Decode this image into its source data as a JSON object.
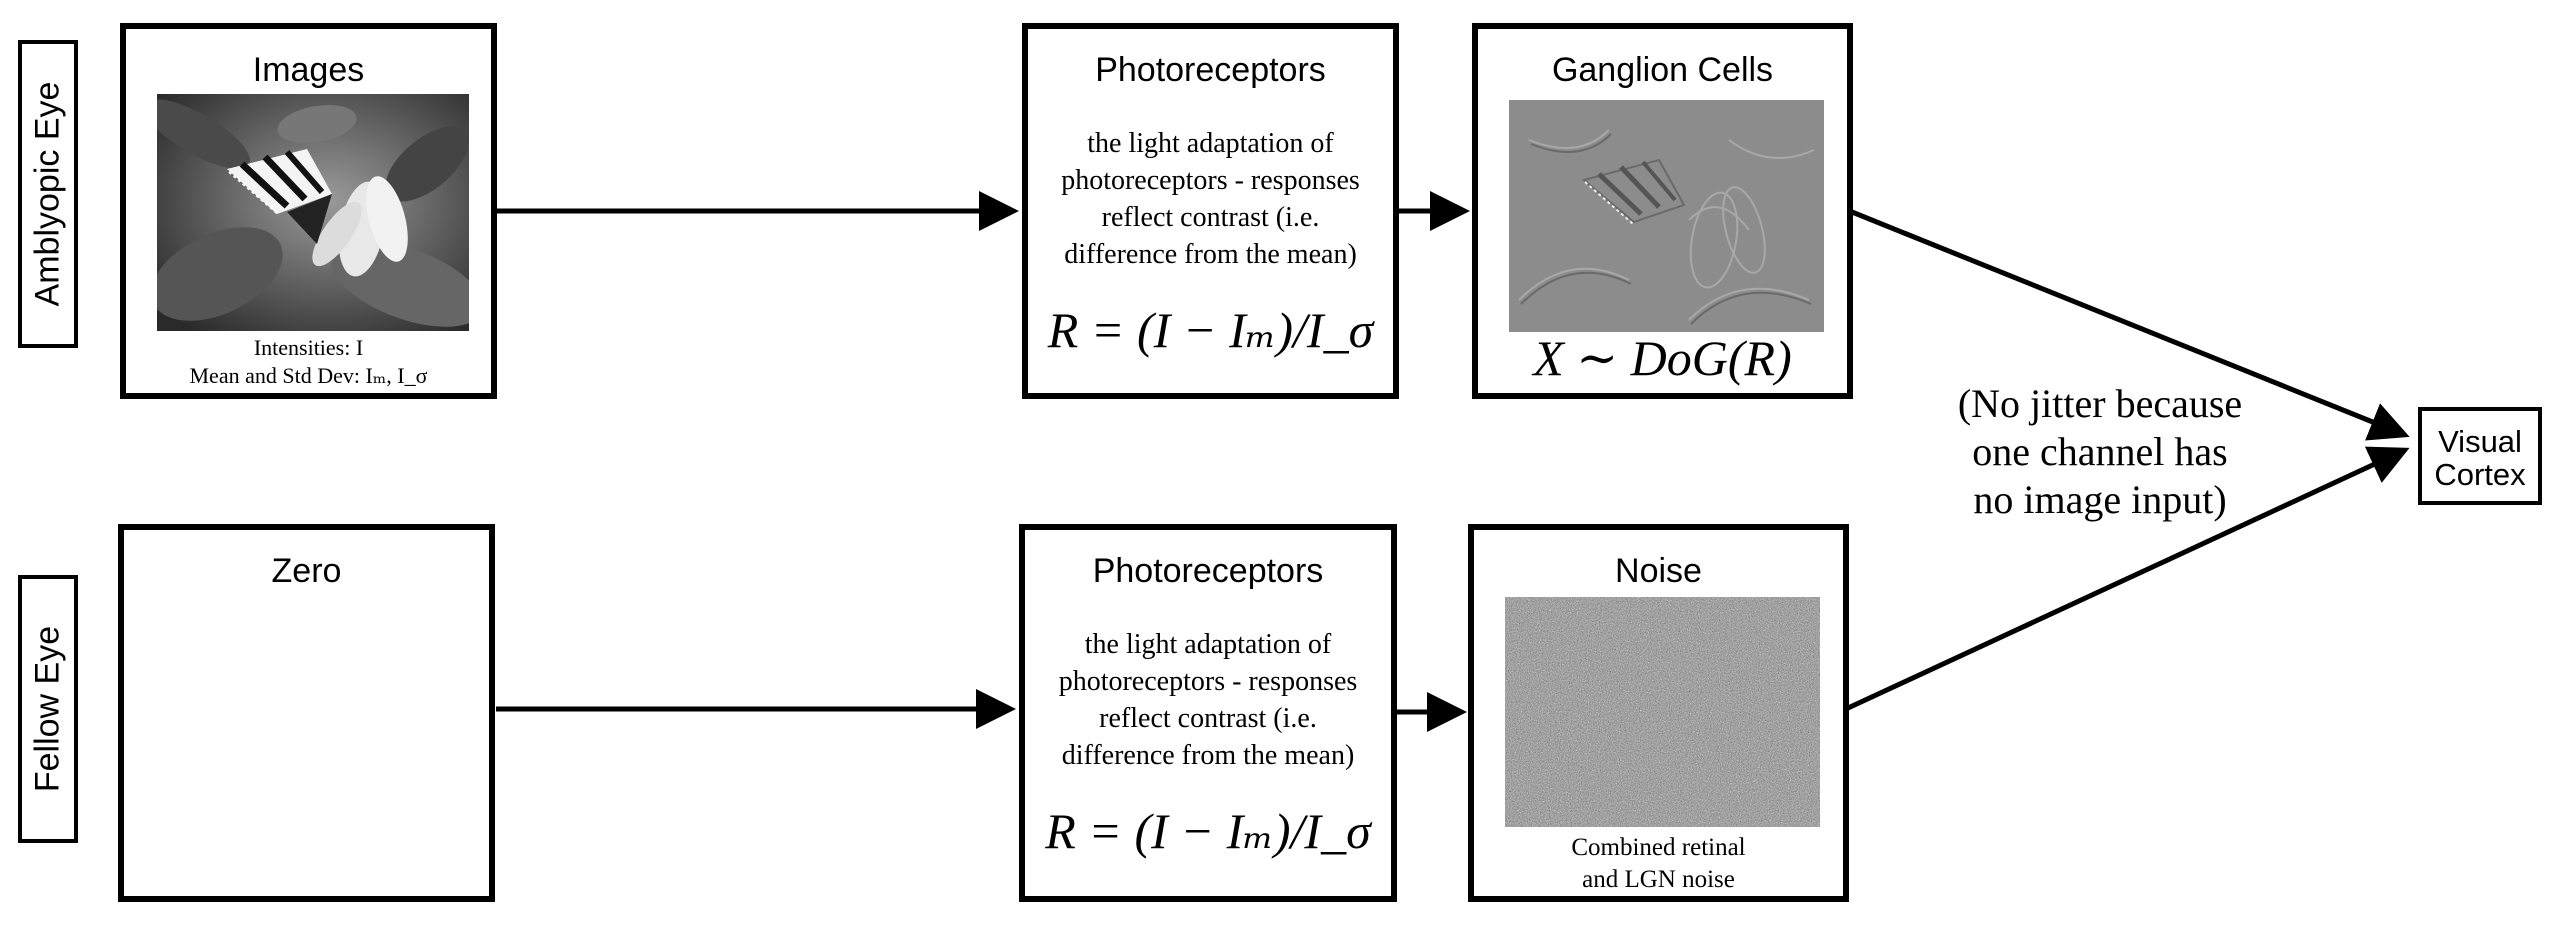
{
  "rows": {
    "amblyopic_label": "Amblyopic Eye",
    "fellow_label": "Fellow Eye"
  },
  "amblyopic": {
    "images": {
      "title": "Images",
      "image_icon": "butterfly-grayscale-photo",
      "caption_line1": "Intensities: I",
      "caption_line2": "Mean and Std Dev: Iₘ, I_σ"
    },
    "photoreceptors": {
      "title": "Photoreceptors",
      "desc_line1": "the light adaptation of",
      "desc_line2": "photoreceptors - responses",
      "desc_line3": "reflect contrast (i.e.",
      "desc_line4": "difference from the mean)",
      "formula": "R = (I − Iₘ)/I_σ"
    },
    "ganglion": {
      "title": "Ganglion Cells",
      "image_icon": "dog-filtered-butterfly",
      "formula": "X ∼ DoG(R)"
    }
  },
  "fellow": {
    "zero": {
      "title": "Zero"
    },
    "photoreceptors": {
      "title": "Photoreceptors",
      "desc_line1": "the light adaptation of",
      "desc_line2": "photoreceptors - responses",
      "desc_line3": "reflect contrast (i.e.",
      "desc_line4": "difference from the mean)",
      "formula": "R = (I − Iₘ)/I_σ"
    },
    "noise": {
      "title": "Noise",
      "image_icon": "gaussian-noise-texture",
      "caption_line1": "Combined retinal",
      "caption_line2": "and LGN noise"
    }
  },
  "note": {
    "line1": "(No jitter because",
    "line2": "one channel has",
    "line3": "no image input)"
  },
  "cortex": {
    "line1": "Visual",
    "line2": "Cortex"
  }
}
